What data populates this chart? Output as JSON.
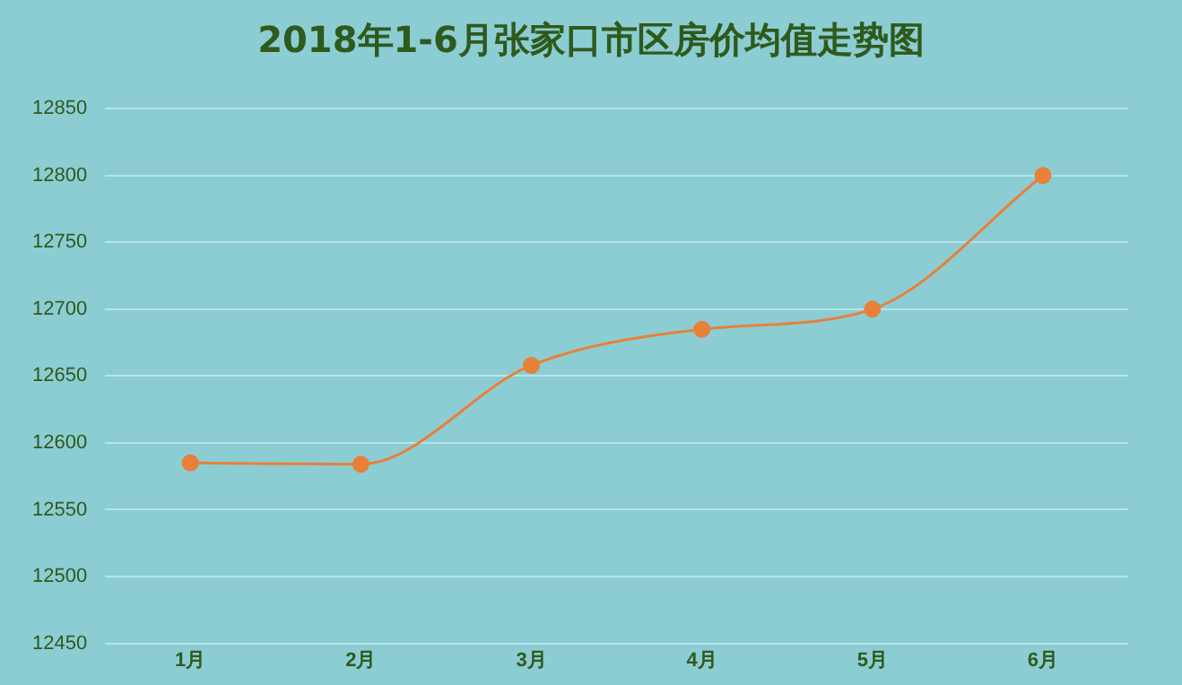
{
  "chart_data": {
    "type": "line",
    "title": "2018年1-6月张家口市区房价均值走势图",
    "categories": [
      "1月",
      "2月",
      "3月",
      "4月",
      "5月",
      "6月"
    ],
    "series": [
      {
        "color": "#e8803a",
        "values": [
          12585,
          12584,
          12658,
          12685,
          12700,
          12800
        ]
      }
    ],
    "ylim": [
      12450,
      12850
    ],
    "yticks": [
      12450,
      12500,
      12550,
      12600,
      12650,
      12700,
      12750,
      12800,
      12850
    ],
    "grid": "y",
    "legend": false,
    "marker": "circle",
    "line_style": "solid"
  }
}
